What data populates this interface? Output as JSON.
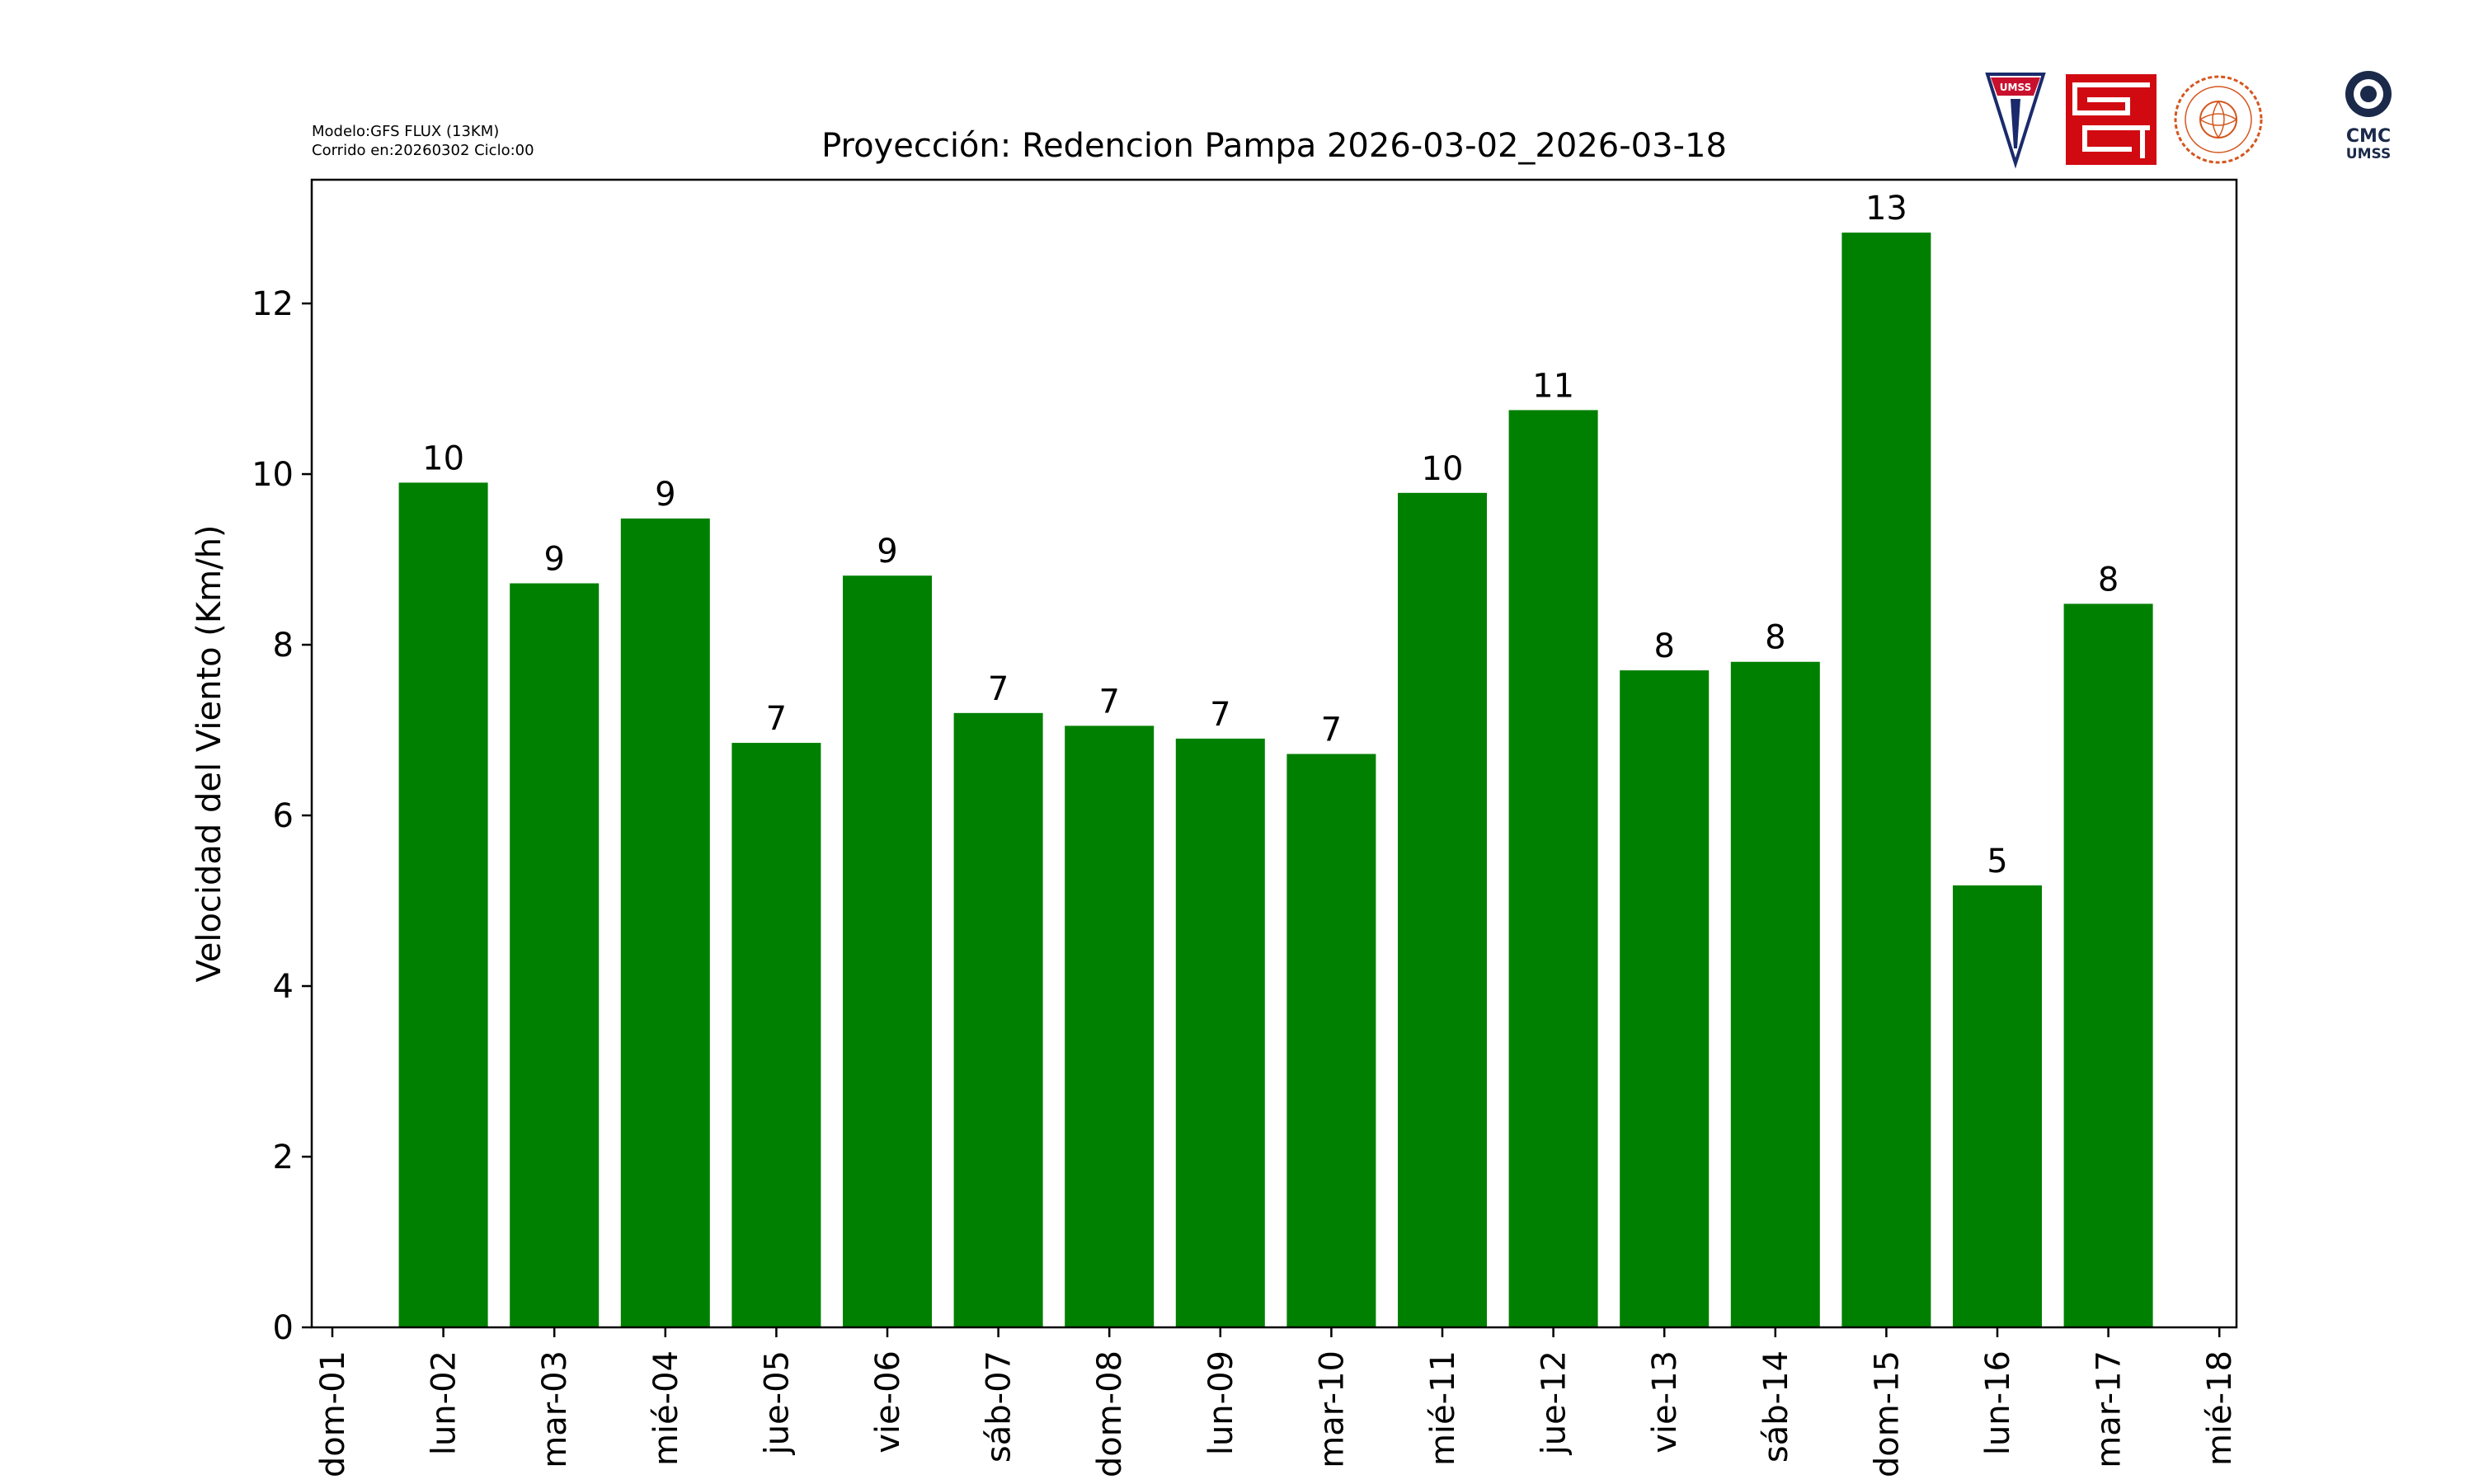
{
  "meta": {
    "model_line": "Modelo:GFS FLUX (13KM)",
    "run_line": "Corrido en:20260302 Ciclo:00"
  },
  "logos": {
    "umss_label": "UMSS",
    "cmc_label": "CMC",
    "cmc_sub_label": "UMSS"
  },
  "chart_data": {
    "type": "bar",
    "title": "Proyección: Redencion Pampa  2026-03-02_2026-03-18",
    "ylabel": "Velocidad del Viento (Km/h)",
    "xlabel": "",
    "ylim": [
      0,
      13.45
    ],
    "yticks": [
      0,
      2,
      4,
      6,
      8,
      10,
      12
    ],
    "x_tick_labels": [
      "dom-01",
      "lun-02",
      "mar-03",
      "mié-04",
      "jue-05",
      "vie-06",
      "sáb-07",
      "dom-08",
      "lun-09",
      "mar-10",
      "mié-11",
      "jue-12",
      "vie-13",
      "sáb-14",
      "dom-15",
      "lun-16",
      "mar-17",
      "mié-18"
    ],
    "categories": [
      "lun-02",
      "mar-03",
      "mié-04",
      "jue-05",
      "vie-06",
      "sáb-07",
      "dom-08",
      "lun-09",
      "mar-10",
      "mié-11",
      "jue-12",
      "vie-13",
      "sáb-14",
      "dom-15",
      "lun-16",
      "mar-17"
    ],
    "values": [
      9.9,
      8.72,
      9.48,
      6.85,
      8.81,
      7.2,
      7.05,
      6.9,
      6.72,
      9.78,
      10.75,
      7.7,
      7.8,
      12.83,
      5.18,
      8.48
    ],
    "data_labels": [
      "10",
      "9",
      "9",
      "7",
      "9",
      "7",
      "7",
      "7",
      "7",
      "10",
      "11",
      "8",
      "8",
      "13",
      "5",
      "8"
    ],
    "bar_color": "#008000",
    "grid": false,
    "legend": "none"
  }
}
